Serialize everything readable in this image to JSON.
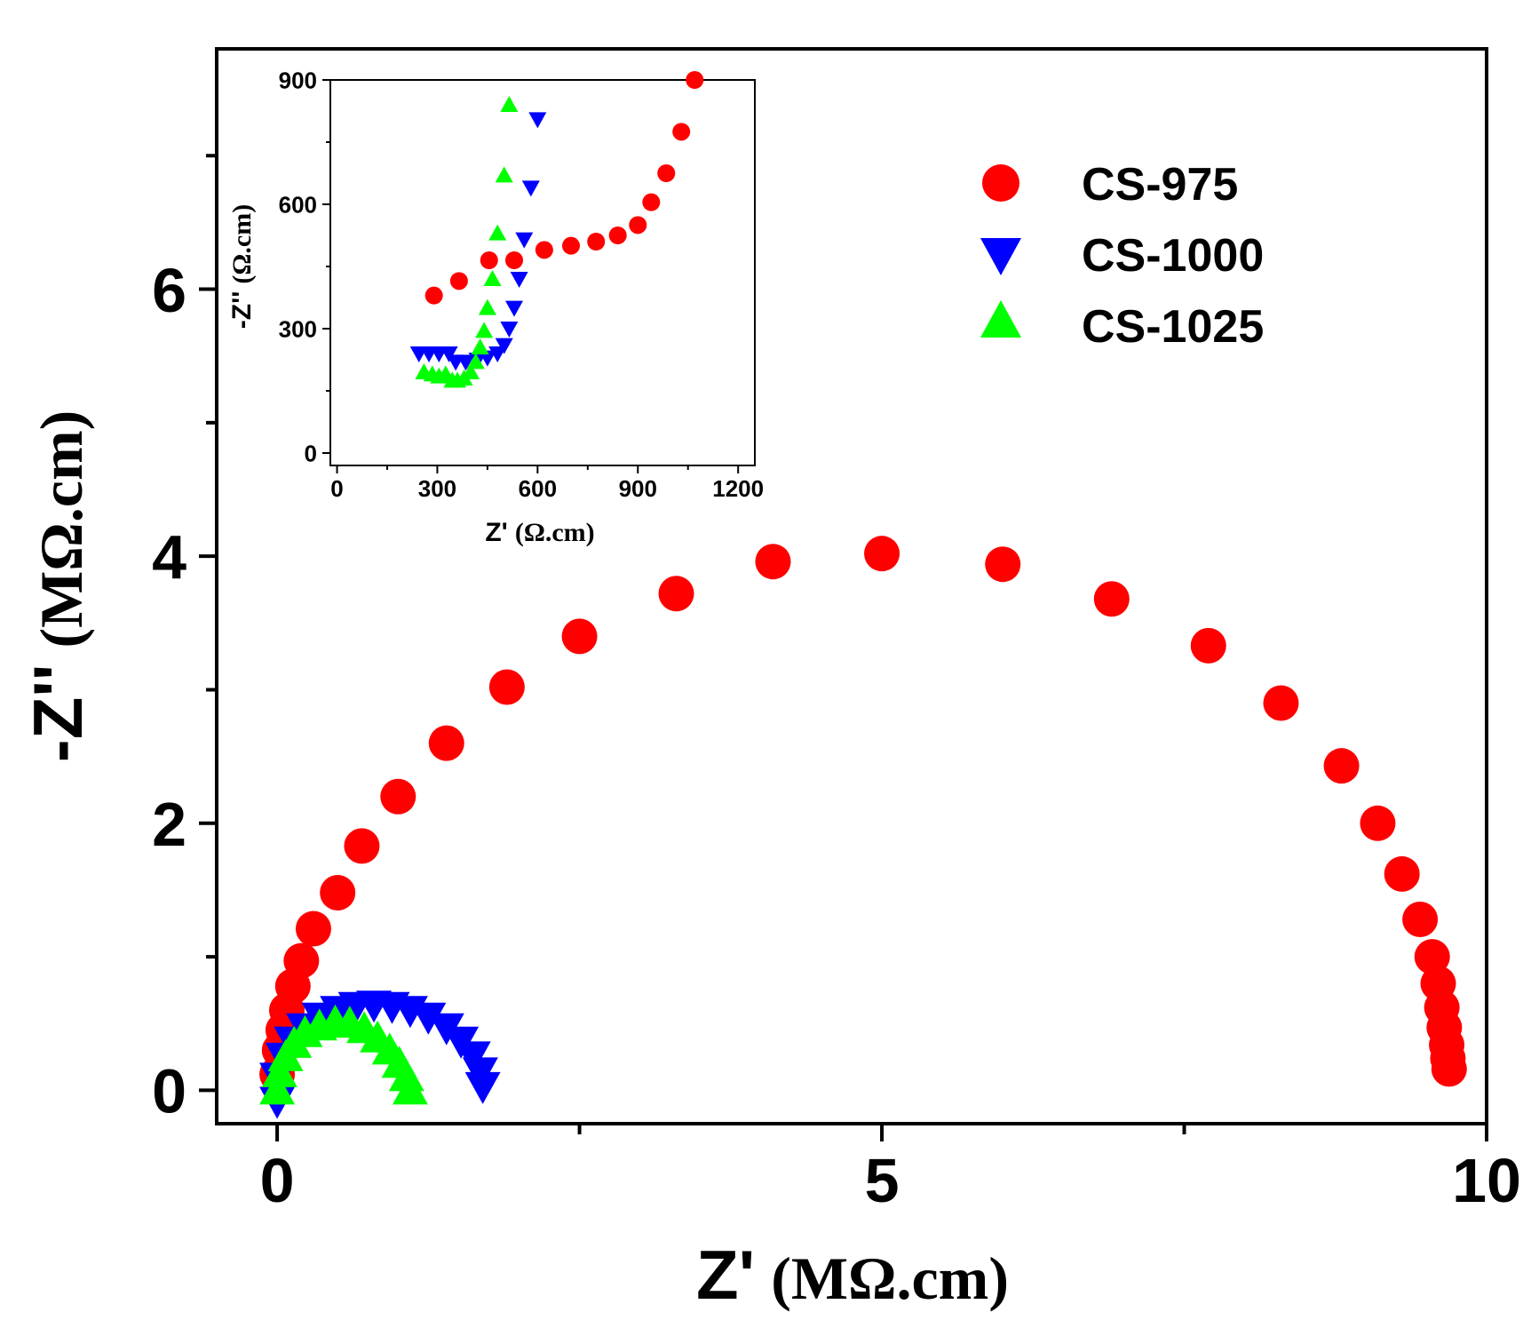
{
  "chart_data": [
    {
      "type": "scatter",
      "xlabel": "Z'",
      "xlabel_unit": "(MΩ.cm)",
      "ylabel": "-Z''",
      "ylabel_unit": "(MΩ.cm)",
      "xlim": [
        -0.5,
        10
      ],
      "ylim": [
        -0.25,
        7.8
      ],
      "x_ticks": [
        0,
        5,
        10
      ],
      "x_tick_labels": [
        "0",
        "5",
        "10"
      ],
      "y_ticks": [
        0,
        2,
        4,
        6
      ],
      "y_tick_labels": [
        "0",
        "2",
        "4",
        "6"
      ],
      "legend_position": "top-right",
      "series": [
        {
          "name": "CS-975",
          "marker": "circle",
          "color": "#ff0000",
          "points": [
            [
              0.0,
              0.12
            ],
            [
              0.02,
              0.3
            ],
            [
              0.05,
              0.45
            ],
            [
              0.08,
              0.6
            ],
            [
              0.13,
              0.78
            ],
            [
              0.2,
              0.97
            ],
            [
              0.3,
              1.21
            ],
            [
              0.5,
              1.48
            ],
            [
              0.7,
              1.83
            ],
            [
              1.0,
              2.2
            ],
            [
              1.4,
              2.6
            ],
            [
              1.9,
              3.02
            ],
            [
              2.5,
              3.4
            ],
            [
              3.3,
              3.72
            ],
            [
              4.1,
              3.96
            ],
            [
              5.0,
              4.02
            ],
            [
              6.0,
              3.94
            ],
            [
              6.9,
              3.68
            ],
            [
              7.7,
              3.33
            ],
            [
              8.3,
              2.9
            ],
            [
              8.8,
              2.43
            ],
            [
              9.1,
              2.0
            ],
            [
              9.3,
              1.62
            ],
            [
              9.45,
              1.28
            ],
            [
              9.55,
              1.0
            ],
            [
              9.6,
              0.8
            ],
            [
              9.63,
              0.62
            ],
            [
              9.65,
              0.47
            ],
            [
              9.67,
              0.34
            ],
            [
              9.68,
              0.24
            ],
            [
              9.69,
              0.16
            ]
          ]
        },
        {
          "name": "CS-1000",
          "marker": "triangle-down",
          "color": "#0000ff",
          "points": [
            [
              0.0,
              -0.08
            ],
            [
              0.0,
              0.1
            ],
            [
              0.05,
              0.25
            ],
            [
              0.12,
              0.37
            ],
            [
              0.22,
              0.47
            ],
            [
              0.35,
              0.55
            ],
            [
              0.5,
              0.6
            ],
            [
              0.65,
              0.63
            ],
            [
              0.8,
              0.64
            ],
            [
              0.95,
              0.63
            ],
            [
              1.1,
              0.6
            ],
            [
              1.25,
              0.55
            ],
            [
              1.4,
              0.47
            ],
            [
              1.52,
              0.37
            ],
            [
              1.62,
              0.26
            ],
            [
              1.68,
              0.14
            ],
            [
              1.7,
              0.03
            ]
          ]
        },
        {
          "name": "CS-1025",
          "marker": "triangle-up",
          "color": "#00ff00",
          "points": [
            [
              0.0,
              0.0
            ],
            [
              0.02,
              0.13
            ],
            [
              0.07,
              0.25
            ],
            [
              0.14,
              0.35
            ],
            [
              0.23,
              0.43
            ],
            [
              0.35,
              0.48
            ],
            [
              0.48,
              0.51
            ],
            [
              0.6,
              0.5
            ],
            [
              0.72,
              0.46
            ],
            [
              0.83,
              0.39
            ],
            [
              0.93,
              0.3
            ],
            [
              1.01,
              0.2
            ],
            [
              1.07,
              0.1
            ],
            [
              1.1,
              0.0
            ]
          ]
        }
      ]
    },
    {
      "type": "scatter",
      "inset": true,
      "xlabel": "Z'",
      "xlabel_unit": "(Ω.cm)",
      "ylabel": "-Z''",
      "ylabel_unit": "(Ω.cm)",
      "xlim": [
        -20,
        1250
      ],
      "ylim": [
        -30,
        900
      ],
      "x_ticks": [
        0,
        300,
        600,
        900,
        1200
      ],
      "x_tick_labels": [
        "0",
        "300",
        "600",
        "900",
        "1200"
      ],
      "y_ticks": [
        0,
        300,
        600,
        900
      ],
      "y_tick_labels": [
        "0",
        "300",
        "600",
        "900"
      ],
      "series": [
        {
          "name": "CS-975",
          "marker": "circle",
          "color": "#ff0000",
          "points": [
            [
              290,
              380
            ],
            [
              365,
              415
            ],
            [
              455,
              465
            ],
            [
              530,
              465
            ],
            [
              620,
              490
            ],
            [
              700,
              500
            ],
            [
              775,
              510
            ],
            [
              840,
              525
            ],
            [
              900,
              550
            ],
            [
              940,
              605
            ],
            [
              985,
              675
            ],
            [
              1030,
              775
            ],
            [
              1070,
              900
            ]
          ]
        },
        {
          "name": "CS-1000",
          "marker": "triangle-down",
          "color": "#0000ff",
          "points": [
            [
              245,
              240
            ],
            [
              275,
              240
            ],
            [
              305,
              240
            ],
            [
              335,
              240
            ],
            [
              355,
              220
            ],
            [
              385,
              220
            ],
            [
              420,
              225
            ],
            [
              450,
              230
            ],
            [
              480,
              240
            ],
            [
              500,
              260
            ],
            [
              515,
              300
            ],
            [
              530,
              350
            ],
            [
              545,
              420
            ],
            [
              560,
              515
            ],
            [
              580,
              640
            ],
            [
              600,
              805
            ]
          ]
        },
        {
          "name": "CS-1025",
          "marker": "triangle-up",
          "color": "#00ff00",
          "points": [
            [
              260,
              195
            ],
            [
              285,
              190
            ],
            [
              305,
              185
            ],
            [
              325,
              190
            ],
            [
              345,
              175
            ],
            [
              360,
              175
            ],
            [
              380,
              180
            ],
            [
              400,
              195
            ],
            [
              415,
              220
            ],
            [
              428,
              255
            ],
            [
              440,
              295
            ],
            [
              450,
              350
            ],
            [
              465,
              420
            ],
            [
              480,
              530
            ],
            [
              500,
              670
            ],
            [
              515,
              840
            ]
          ]
        }
      ]
    }
  ]
}
